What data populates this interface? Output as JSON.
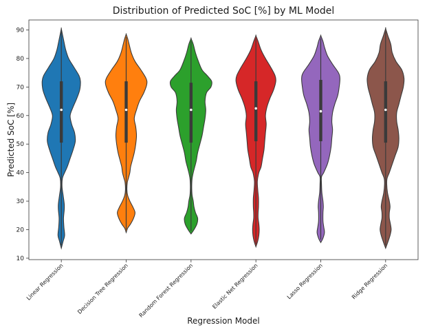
{
  "chart_data": {
    "type": "violin",
    "title": "Distribution of Predicted SoC [%] by ML Model",
    "xlabel": "Regression Model",
    "ylabel": "Predicted SoC [%]",
    "ylim": [
      9.5,
      93.5
    ],
    "yticks": [
      10,
      20,
      30,
      40,
      50,
      60,
      70,
      80,
      90
    ],
    "grid": false,
    "series": [
      {
        "name": "Linear Regression",
        "color": "#1f77b4",
        "min": 13.5,
        "max": 90.5,
        "q1": 50.5,
        "median": 62,
        "q3": 72,
        "density": [
          [
            13.5,
            0
          ],
          [
            16,
            2.5
          ],
          [
            18,
            4.5
          ],
          [
            21,
            3.5
          ],
          [
            24,
            3
          ],
          [
            27,
            4
          ],
          [
            29,
            4
          ],
          [
            32,
            2.5
          ],
          [
            35,
            1
          ],
          [
            38,
            1.5
          ],
          [
            40,
            4.5
          ],
          [
            42,
            8
          ],
          [
            45,
            12
          ],
          [
            48,
            16
          ],
          [
            51,
            19
          ],
          [
            54,
            18
          ],
          [
            57,
            14
          ],
          [
            60,
            12
          ],
          [
            63,
            16
          ],
          [
            66,
            21
          ],
          [
            69,
            25
          ],
          [
            72,
            26
          ],
          [
            74,
            24
          ],
          [
            77,
            17
          ],
          [
            80,
            10
          ],
          [
            83,
            6
          ],
          [
            86,
            3.5
          ],
          [
            88.5,
            1.5
          ],
          [
            90.5,
            0
          ]
        ]
      },
      {
        "name": "Decision Tree Regression",
        "color": "#ff7f0e",
        "min": 19,
        "max": 88.5,
        "q1": 50.5,
        "median": 62,
        "q3": 72,
        "density": [
          [
            19,
            0
          ],
          [
            20.5,
            2
          ],
          [
            22,
            6
          ],
          [
            24,
            10
          ],
          [
            26,
            12
          ],
          [
            28,
            9
          ],
          [
            30,
            5
          ],
          [
            32,
            2
          ],
          [
            34,
            1
          ],
          [
            36.5,
            1.5
          ],
          [
            38,
            3
          ],
          [
            40,
            5
          ],
          [
            42,
            6
          ],
          [
            44,
            8
          ],
          [
            47,
            11
          ],
          [
            50,
            13
          ],
          [
            53,
            14
          ],
          [
            56,
            13
          ],
          [
            59,
            11
          ],
          [
            62,
            14
          ],
          [
            65,
            18
          ],
          [
            68,
            24
          ],
          [
            71,
            28
          ],
          [
            73,
            27
          ],
          [
            76,
            20
          ],
          [
            79,
            12
          ],
          [
            82,
            7
          ],
          [
            85,
            4
          ],
          [
            87,
            2
          ],
          [
            88.5,
            0
          ]
        ]
      },
      {
        "name": "Random Forest Regression",
        "color": "#2ca02c",
        "min": 18.5,
        "max": 87,
        "q1": 50.5,
        "median": 62,
        "q3": 71.5,
        "density": [
          [
            18.5,
            0
          ],
          [
            20,
            4
          ],
          [
            22,
            8
          ],
          [
            24,
            9
          ],
          [
            26,
            6
          ],
          [
            28,
            4
          ],
          [
            30,
            3
          ],
          [
            32,
            1.5
          ],
          [
            34,
            1
          ],
          [
            36,
            1
          ],
          [
            38,
            1.5
          ],
          [
            40,
            3
          ],
          [
            42,
            5
          ],
          [
            44,
            7
          ],
          [
            47,
            9
          ],
          [
            50,
            12
          ],
          [
            53,
            15
          ],
          [
            56,
            17
          ],
          [
            59,
            19
          ],
          [
            62,
            20
          ],
          [
            65,
            19
          ],
          [
            68,
            21
          ],
          [
            70,
            27
          ],
          [
            72,
            28
          ],
          [
            74,
            22
          ],
          [
            76,
            15
          ],
          [
            79,
            10
          ],
          [
            82,
            6
          ],
          [
            85,
            3
          ],
          [
            87,
            0
          ]
        ]
      },
      {
        "name": "Elastic Net Regression",
        "color": "#d62728",
        "min": 14,
        "max": 88,
        "q1": 51,
        "median": 62.5,
        "q3": 72,
        "density": [
          [
            14,
            0
          ],
          [
            16,
            2.5
          ],
          [
            18,
            4
          ],
          [
            20,
            4.5
          ],
          [
            22,
            4
          ],
          [
            24,
            3
          ],
          [
            26,
            3
          ],
          [
            28,
            3.5
          ],
          [
            31,
            3.5
          ],
          [
            34,
            2.5
          ],
          [
            37,
            2
          ],
          [
            40,
            4
          ],
          [
            42,
            7
          ],
          [
            45,
            9
          ],
          [
            48,
            11
          ],
          [
            51,
            12
          ],
          [
            54,
            13
          ],
          [
            57,
            14
          ],
          [
            60,
            13
          ],
          [
            63,
            15
          ],
          [
            66,
            19
          ],
          [
            69,
            24
          ],
          [
            72,
            27
          ],
          [
            74,
            26
          ],
          [
            77,
            20
          ],
          [
            80,
            13
          ],
          [
            83,
            7
          ],
          [
            86,
            3
          ],
          [
            88,
            0
          ]
        ]
      },
      {
        "name": "Lasso Regression",
        "color": "#9467bd",
        "min": 15.5,
        "max": 88,
        "q1": 51,
        "median": 61.5,
        "q3": 72.5,
        "density": [
          [
            15.5,
            0
          ],
          [
            17,
            3
          ],
          [
            19,
            5
          ],
          [
            21,
            4
          ],
          [
            23,
            3
          ],
          [
            26,
            3
          ],
          [
            28,
            3.5
          ],
          [
            30,
            3
          ],
          [
            33,
            1.5
          ],
          [
            36,
            1
          ],
          [
            38.5,
            1
          ],
          [
            40,
            4
          ],
          [
            43,
            9
          ],
          [
            46,
            12
          ],
          [
            49,
            14
          ],
          [
            52,
            15
          ],
          [
            55,
            16
          ],
          [
            58,
            15
          ],
          [
            61,
            16
          ],
          [
            64,
            19
          ],
          [
            67,
            23
          ],
          [
            70,
            25
          ],
          [
            73,
            26
          ],
          [
            75,
            24
          ],
          [
            78,
            16
          ],
          [
            81,
            9
          ],
          [
            84,
            5
          ],
          [
            86,
            3
          ],
          [
            88,
            0
          ]
        ]
      },
      {
        "name": "Ridge Regression",
        "color": "#8c564b",
        "min": 13.5,
        "max": 90.5,
        "q1": 50.5,
        "median": 62,
        "q3": 72,
        "density": [
          [
            13.5,
            0
          ],
          [
            16,
            3.5
          ],
          [
            18,
            6
          ],
          [
            20,
            7.5
          ],
          [
            22,
            6.5
          ],
          [
            24,
            5
          ],
          [
            26,
            5
          ],
          [
            28,
            6
          ],
          [
            30,
            5
          ],
          [
            33,
            2.5
          ],
          [
            36,
            1.5
          ],
          [
            38,
            2
          ],
          [
            40,
            5
          ],
          [
            43,
            9
          ],
          [
            46,
            13
          ],
          [
            49,
            17
          ],
          [
            52,
            18
          ],
          [
            55,
            17
          ],
          [
            58,
            15
          ],
          [
            61,
            15
          ],
          [
            64,
            18
          ],
          [
            67,
            21
          ],
          [
            70,
            24
          ],
          [
            73,
            25
          ],
          [
            76,
            22
          ],
          [
            79,
            14
          ],
          [
            82,
            9
          ],
          [
            85,
            7
          ],
          [
            88,
            3
          ],
          [
            90.5,
            0
          ]
        ]
      }
    ]
  }
}
